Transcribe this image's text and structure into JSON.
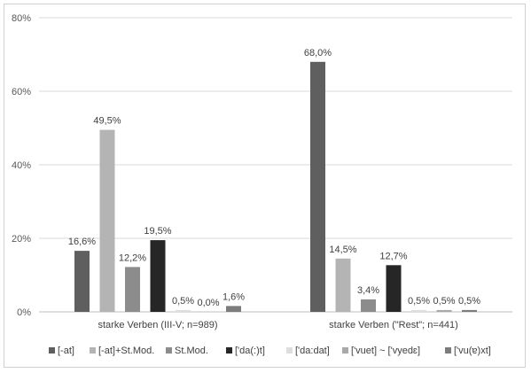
{
  "chart_data": {
    "type": "bar",
    "title": "",
    "xlabel": "",
    "ylabel": "",
    "ylim": [
      0,
      80
    ],
    "yticks": [
      "0%",
      "20%",
      "40%",
      "60%",
      "80%"
    ],
    "ytick_values": [
      0,
      20,
      40,
      60,
      80
    ],
    "grid": true,
    "legend_position": "bottom",
    "categories": [
      "starke Verben (III-V; n=989)",
      "starke Verben (\"Rest\"; n=441)"
    ],
    "series": [
      {
        "name": "[-at]",
        "color": "#5f5f5f",
        "values": [
          16.6,
          68.0
        ],
        "labels": [
          "16,6%",
          "68,0%"
        ]
      },
      {
        "name": "[-at]+St.Mod.",
        "color": "#b4b4b4",
        "values": [
          49.5,
          14.5
        ],
        "labels": [
          "49,5%",
          "14,5%"
        ]
      },
      {
        "name": "St.Mod.",
        "color": "#8c8c8c",
        "values": [
          12.2,
          3.4
        ],
        "labels": [
          "12,2%",
          "3,4%"
        ]
      },
      {
        "name": "['da(:)t]",
        "color": "#262626",
        "values": [
          19.5,
          12.7
        ],
        "labels": [
          "19,5%",
          "12,7%"
        ]
      },
      {
        "name": "['da:dat]",
        "color": "#dedede",
        "values": [
          0.5,
          0.5
        ],
        "labels": [
          "0,5%",
          "0,5%"
        ]
      },
      {
        "name": "['vuet] ~ ['vyedɛ]",
        "color": "#a9a9a9",
        "values": [
          0.0,
          0.5
        ],
        "labels": [
          "0,0%",
          "0,5%"
        ]
      },
      {
        "name": "['vu(ɐ)xt]",
        "color": "#7c7c7c",
        "values": [
          1.6,
          0.5
        ],
        "labels": [
          "1,6%",
          "0,5%"
        ]
      }
    ]
  }
}
